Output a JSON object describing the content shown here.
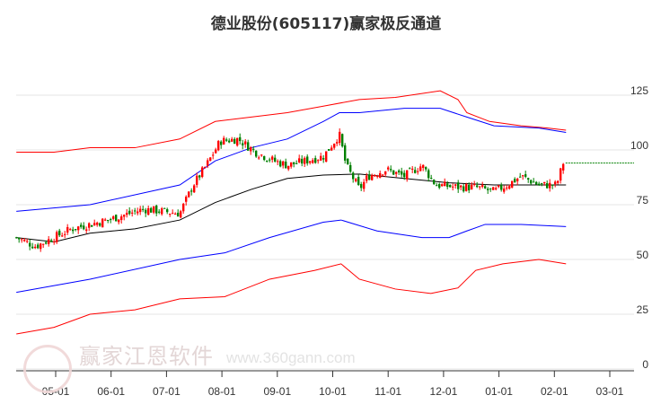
{
  "chart_data": {
    "type": "candlestick",
    "title": "德业股份(605117)赢家极反通道",
    "x_unit": "months since 05-01",
    "xlim": [
      -0.75,
      10.3
    ],
    "ylim": [
      0,
      132
    ],
    "y_ticks": [
      0,
      25,
      50,
      75,
      100,
      125
    ],
    "x_ticks": [
      {
        "m": 0,
        "label": "05-01"
      },
      {
        "m": 1,
        "label": "06-01"
      },
      {
        "m": 2,
        "label": "07-01"
      },
      {
        "m": 3,
        "label": "08-01"
      },
      {
        "m": 4,
        "label": "09-01"
      },
      {
        "m": 5,
        "label": "10-01"
      },
      {
        "m": 6,
        "label": "11-01"
      },
      {
        "m": 7,
        "label": "12-01"
      },
      {
        "m": 8,
        "label": "01-01"
      },
      {
        "m": 9,
        "label": "02-01"
      },
      {
        "m": 10,
        "label": "03-01"
      }
    ],
    "price_path": [
      [
        -0.71,
        60
      ],
      [
        -0.36,
        56
      ],
      [
        0.29,
        64
      ],
      [
        0.94,
        68
      ],
      [
        1.59,
        73
      ],
      [
        2.24,
        71
      ],
      [
        2.48,
        84
      ],
      [
        2.72,
        93
      ],
      [
        2.97,
        104
      ],
      [
        3.29,
        105
      ],
      [
        3.61,
        99
      ],
      [
        3.94,
        95
      ],
      [
        4.18,
        93
      ],
      [
        4.51,
        95
      ],
      [
        4.83,
        97
      ],
      [
        5.12,
        107
      ],
      [
        5.24,
        93
      ],
      [
        5.48,
        82
      ],
      [
        5.64,
        88
      ],
      [
        5.96,
        91
      ],
      [
        6.29,
        88
      ],
      [
        6.61,
        93
      ],
      [
        6.86,
        84
      ],
      [
        7.26,
        83
      ],
      [
        7.58,
        83
      ],
      [
        7.91,
        81
      ],
      [
        8.15,
        84
      ],
      [
        8.4,
        88
      ],
      [
        8.72,
        84
      ],
      [
        9.04,
        84
      ],
      [
        9.17,
        95
      ]
    ],
    "last_price_line": 94,
    "series": [
      {
        "name": "upper-outer",
        "color": "#ff0000",
        "points": [
          [
            -0.71,
            99
          ],
          [
            -0.03,
            99
          ],
          [
            0.62,
            101
          ],
          [
            1.43,
            101
          ],
          [
            2.24,
            105
          ],
          [
            2.88,
            113
          ],
          [
            3.53,
            115
          ],
          [
            4.18,
            117
          ],
          [
            4.83,
            120
          ],
          [
            5.48,
            123
          ],
          [
            6.13,
            124
          ],
          [
            6.94,
            127
          ],
          [
            7.26,
            123
          ],
          [
            7.42,
            117
          ],
          [
            7.83,
            113
          ],
          [
            8.4,
            111
          ],
          [
            8.88,
            110
          ],
          [
            9.21,
            109
          ]
        ]
      },
      {
        "name": "upper-inner",
        "color": "#0000ff",
        "points": [
          [
            -0.71,
            72
          ],
          [
            0.62,
            75
          ],
          [
            2.24,
            84
          ],
          [
            2.88,
            95
          ],
          [
            3.53,
            101
          ],
          [
            4.18,
            105
          ],
          [
            4.83,
            113
          ],
          [
            5.12,
            117
          ],
          [
            5.48,
            117
          ],
          [
            6.29,
            119
          ],
          [
            6.94,
            119
          ],
          [
            7.42,
            115
          ],
          [
            7.91,
            111
          ],
          [
            8.72,
            110
          ],
          [
            9.21,
            108
          ]
        ]
      },
      {
        "name": "middle",
        "color": "#000000",
        "points": [
          [
            -0.71,
            60
          ],
          [
            -0.03,
            58
          ],
          [
            0.62,
            62
          ],
          [
            1.43,
            64
          ],
          [
            2.24,
            68
          ],
          [
            2.88,
            76
          ],
          [
            3.53,
            82
          ],
          [
            4.18,
            87
          ],
          [
            4.83,
            88.5
          ],
          [
            5.48,
            89
          ],
          [
            6.29,
            87
          ],
          [
            7.1,
            85
          ],
          [
            7.91,
            84
          ],
          [
            9.21,
            84
          ]
        ]
      },
      {
        "name": "lower-inner",
        "color": "#0000ff",
        "points": [
          [
            -0.71,
            35
          ],
          [
            0.62,
            41
          ],
          [
            2.24,
            50
          ],
          [
            3.05,
            53
          ],
          [
            3.86,
            60
          ],
          [
            4.83,
            67
          ],
          [
            5.15,
            68
          ],
          [
            5.8,
            63
          ],
          [
            6.61,
            60
          ],
          [
            7.1,
            60
          ],
          [
            7.42,
            63
          ],
          [
            7.75,
            66
          ],
          [
            8.4,
            66
          ],
          [
            9.21,
            65
          ]
        ]
      },
      {
        "name": "lower-outer",
        "color": "#ff0000",
        "points": [
          [
            -0.71,
            16
          ],
          [
            -0.03,
            19
          ],
          [
            0.62,
            25
          ],
          [
            1.43,
            27
          ],
          [
            2.24,
            32
          ],
          [
            3.05,
            33
          ],
          [
            3.86,
            41
          ],
          [
            4.67,
            45
          ],
          [
            5.15,
            48
          ],
          [
            5.48,
            41
          ],
          [
            6.13,
            36.5
          ],
          [
            6.77,
            34.5
          ],
          [
            7.26,
            37
          ],
          [
            7.58,
            45
          ],
          [
            8.07,
            48
          ],
          [
            8.72,
            50
          ],
          [
            9.21,
            48
          ]
        ]
      }
    ]
  },
  "watermark": {
    "name": "赢家江恩软件",
    "url": "www.360gann.com",
    "logo": "江赢恩家"
  }
}
